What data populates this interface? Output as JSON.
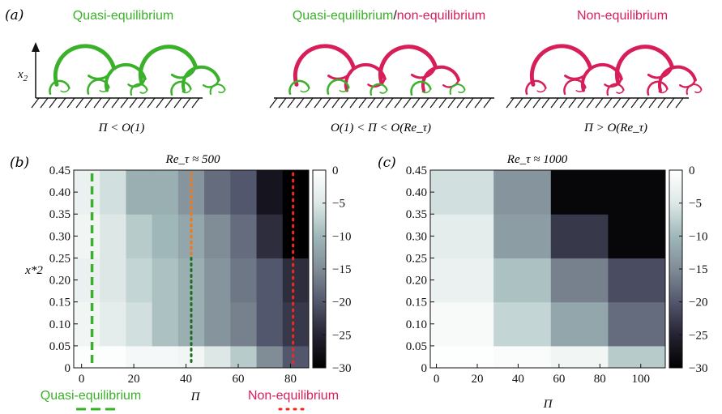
{
  "panel_a": {
    "label": "(a)",
    "regimes": [
      {
        "title": "Quasi-equilibrium",
        "condition": "Π < O(1)"
      },
      {
        "title_left": "Quasi-equilibrium",
        "title_sep": "/",
        "title_right": "non-equilibrium",
        "condition": "O(1) < Π < O(Re_τ)"
      },
      {
        "title": "Non-equilibrium",
        "condition": "Π > O(Re_τ)"
      }
    ],
    "axis_label": "x2"
  },
  "legend": {
    "quasi": "Quasi-equilibrium",
    "non": "Non-equilibrium"
  },
  "colors": {
    "green": "#3bb02a",
    "red": "#d81e58",
    "orange": "#f07a1a",
    "darkgreen": "#1f6b22",
    "brightred": "#f0281e"
  },
  "chart_data": [
    {
      "type": "heatmap",
      "panel": "(b)",
      "title": "Re_τ ≈ 500",
      "xlabel": "Π",
      "ylabel": "x*2",
      "x_edges": [
        -3,
        7,
        17,
        27,
        37,
        47,
        57,
        67,
        77,
        87
      ],
      "y_edges": [
        0,
        0.05,
        0.15,
        0.25,
        0.35,
        0.45
      ],
      "x_ticks": [
        0,
        20,
        40,
        60,
        80
      ],
      "y_ticks": [
        0,
        0.05,
        0.1,
        0.15,
        0.2,
        0.25,
        0.3,
        0.35,
        0.4,
        0.45
      ],
      "y_tick_labels": [
        "0",
        "0.05",
        "0.10",
        "0.15",
        "0.20",
        "0.25",
        "0.30",
        "0.35",
        "0.40",
        "0.45"
      ],
      "values": [
        [
          -0.5,
          -0.5,
          -1.5,
          -1.5,
          -2,
          -5,
          -8,
          -15,
          -20
        ],
        [
          -2,
          -4,
          -6,
          -9,
          -11,
          -14,
          -16,
          -20,
          -23
        ],
        [
          -3,
          -5,
          -7,
          -9,
          -11,
          -14,
          -17,
          -20,
          -24
        ],
        [
          -2,
          -5,
          -8,
          -10,
          -12,
          -15,
          -18,
          -24,
          -30
        ],
        [
          -3,
          -6,
          -11,
          -11,
          -14,
          -18,
          -20,
          -27,
          -30
        ]
      ],
      "colorbar": {
        "min": -30,
        "max": 0,
        "ticks": [
          0,
          -5,
          -10,
          -15,
          -20,
          -25,
          -30
        ],
        "tick_labels": [
          "0",
          "−5",
          "−10",
          "−15",
          "−20",
          "−25",
          "−30"
        ]
      },
      "markers": [
        {
          "x": 4,
          "style": "dashed",
          "color": "#3bb02a"
        },
        {
          "x": 42,
          "style": "dotted-split",
          "color_top": "#f07a1a",
          "color_bottom": "#1f6b22"
        },
        {
          "x": 81,
          "style": "dotted",
          "color": "#f0281e"
        }
      ]
    },
    {
      "type": "heatmap",
      "panel": "(c)",
      "title": "Re_τ ≈ 1000",
      "xlabel": "Π",
      "ylabel": "",
      "x_edges": [
        -3,
        28,
        56,
        84,
        112
      ],
      "y_edges": [
        0,
        0.05,
        0.15,
        0.25,
        0.35,
        0.45
      ],
      "x_ticks": [
        0,
        20,
        40,
        60,
        80,
        100
      ],
      "y_ticks": [
        0,
        0.05,
        0.1,
        0.15,
        0.2,
        0.25,
        0.3,
        0.35,
        0.4,
        0.45
      ],
      "y_tick_labels": [
        "0",
        "0.05",
        "0.10",
        "0.15",
        "0.20",
        "0.25",
        "0.30",
        "0.35",
        "0.40",
        "0.45"
      ],
      "values": [
        [
          -0.3,
          -0.8,
          -2,
          -8
        ],
        [
          -1,
          -7,
          -12,
          -18
        ],
        [
          -3,
          -9,
          -16,
          -21
        ],
        [
          -4,
          -13,
          -23,
          -29
        ],
        [
          -6,
          -14,
          -29,
          -29
        ]
      ],
      "colorbar": {
        "min": -30,
        "max": 0,
        "ticks": [
          0,
          -5,
          -10,
          -15,
          -20,
          -25,
          -30
        ],
        "tick_labels": [
          "0",
          "−5",
          "−10",
          "−15",
          "−20",
          "−25",
          "−30"
        ]
      }
    }
  ]
}
